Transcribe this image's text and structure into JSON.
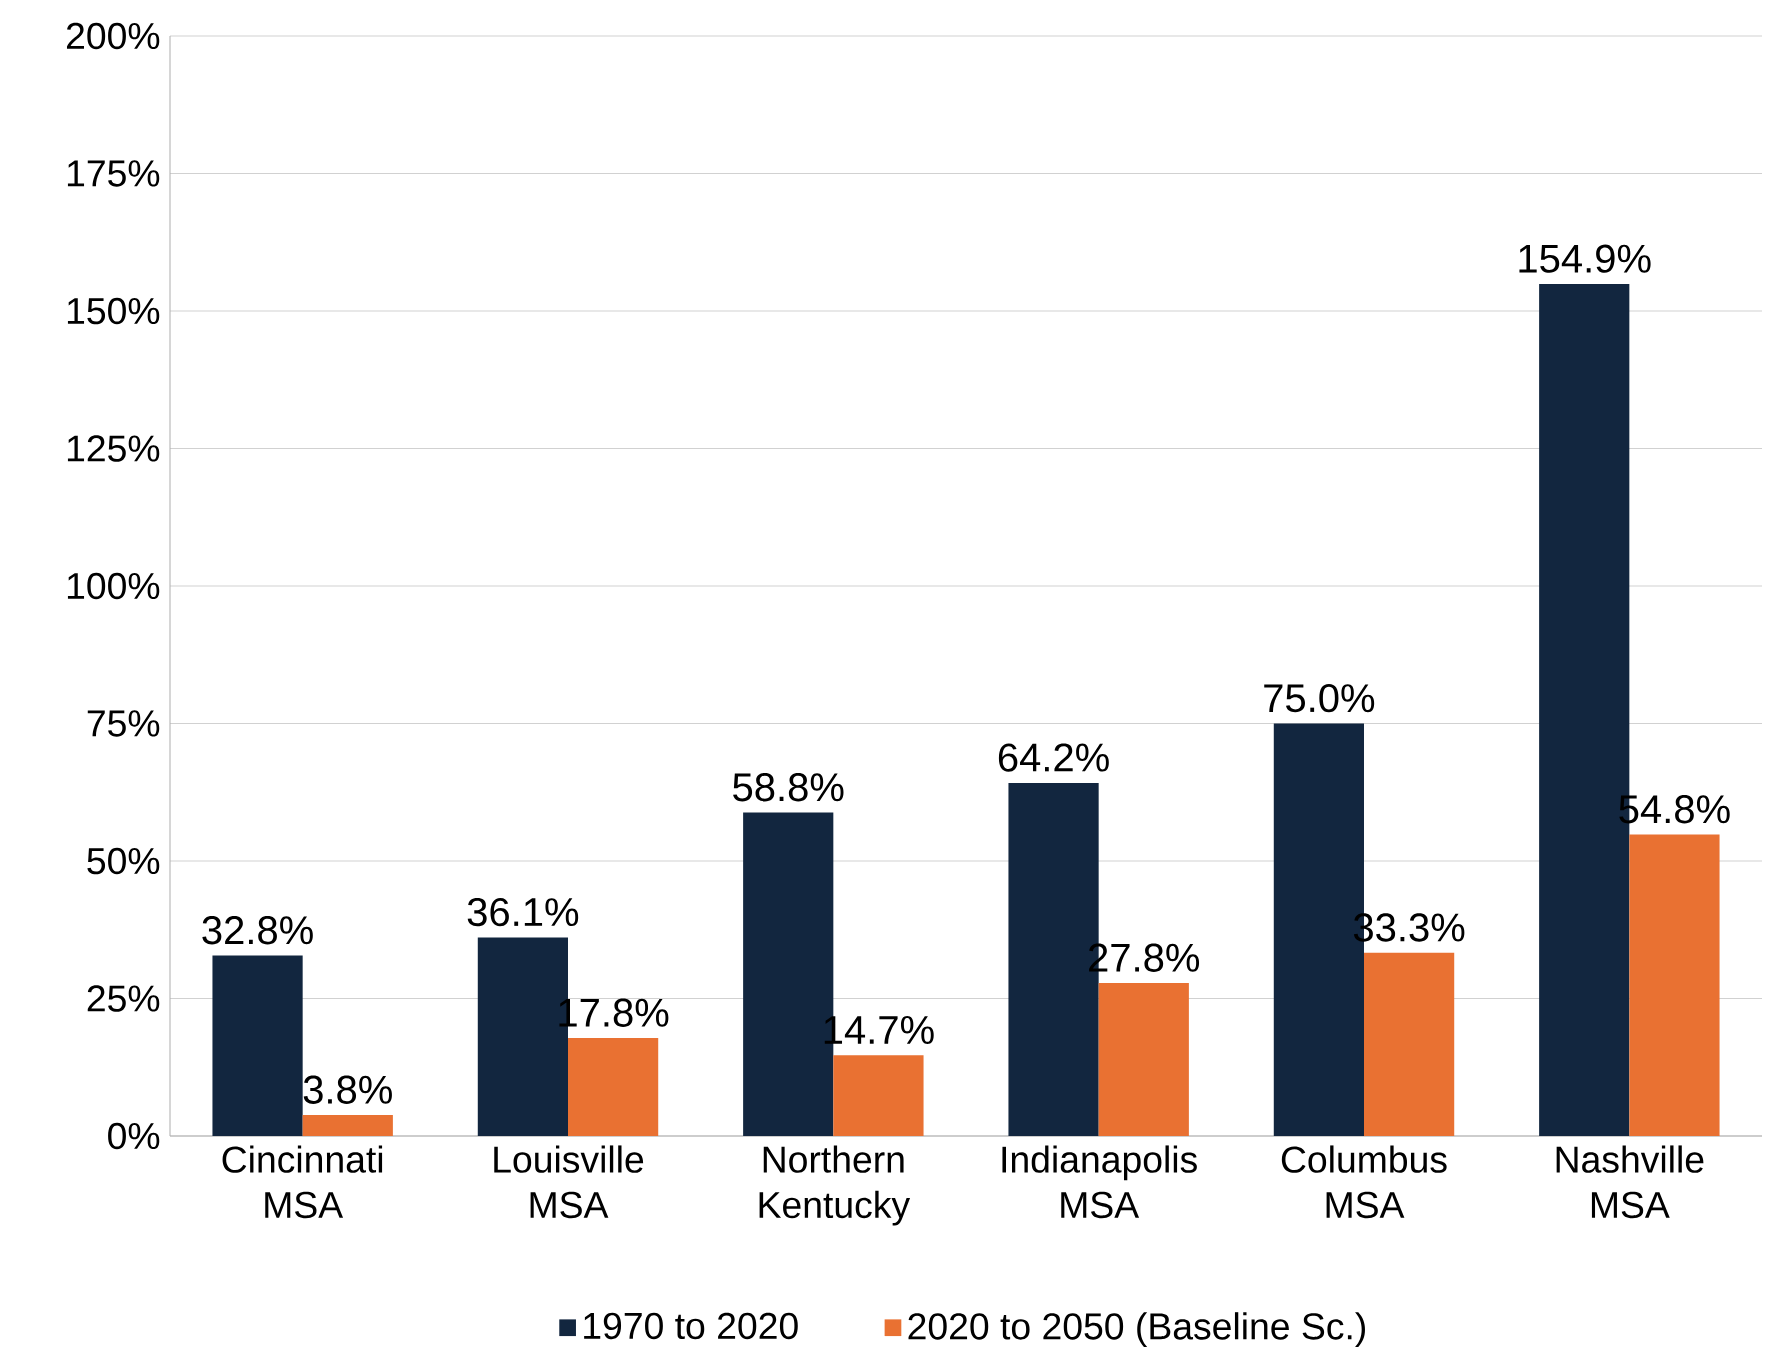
{
  "chart_data": {
    "type": "bar",
    "categories": [
      "Cincinnati MSA",
      "Louisville MSA",
      "Northern Kentucky",
      "Indianapolis MSA",
      "Columbus MSA",
      "Nashville MSA"
    ],
    "series": [
      {
        "name": "1970 to 2020",
        "color": "#12263f",
        "values": [
          32.8,
          36.1,
          58.8,
          64.2,
          75.0,
          154.9
        ],
        "value_labels": [
          "32.8%",
          "36.1%",
          "58.8%",
          "64.2%",
          "75.0%",
          "154.9%"
        ]
      },
      {
        "name": "2020 to 2050 (Baseline Sc.)",
        "color": "#e97132",
        "values": [
          3.8,
          17.8,
          14.7,
          27.8,
          33.3,
          54.8
        ],
        "value_labels": [
          "3.8%",
          "17.8%",
          "14.7%",
          "27.8%",
          "33.3%",
          "54.8%"
        ]
      }
    ],
    "ylim": [
      0,
      200
    ],
    "yticks": [
      {
        "value": 0,
        "label": "0%"
      },
      {
        "value": 25,
        "label": "25%"
      },
      {
        "value": 50,
        "label": "50%"
      },
      {
        "value": 75,
        "label": "75%"
      },
      {
        "value": 100,
        "label": "100%"
      },
      {
        "value": 125,
        "label": "125%"
      },
      {
        "value": 150,
        "label": "150%"
      },
      {
        "value": 175,
        "label": "175%"
      },
      {
        "value": 200,
        "label": "200%"
      }
    ],
    "grid": "y",
    "legend": "bottom"
  }
}
